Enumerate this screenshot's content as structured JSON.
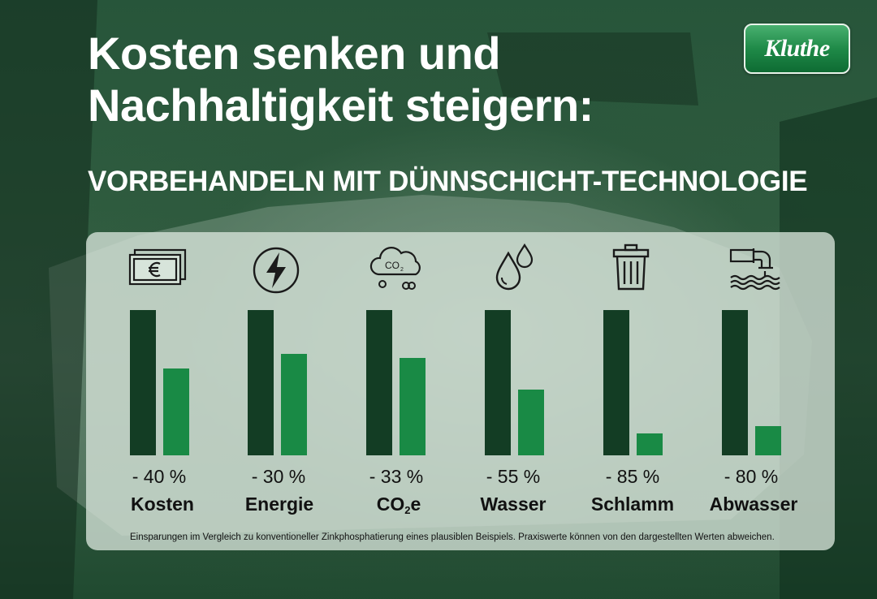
{
  "title_line1": "Kosten senken und",
  "title_line2": "Nachhaltigkeit steigern:",
  "subtitle": "VORBEHANDELN MIT DÜNNSCHICHT-TECHNOLOGIE",
  "logo_text": "Kluthe",
  "footnote": "Einsparungen im Vergleich zu konventioneller Zinkphosphatierung eines plausiblen Beispiels. Praxiswerte können von den dargestellten Werten abweichen.",
  "colors": {
    "conventional": "#133d24",
    "thin_layer": "#198a45",
    "brand": "#1f8a48"
  },
  "chart_data": {
    "type": "bar",
    "categories": [
      "Kosten",
      "Energie",
      "CO2e",
      "Wasser",
      "Schlamm",
      "Abwasser"
    ],
    "icons": [
      "money-icon",
      "energy-icon",
      "co2-cloud-icon",
      "water-drops-icon",
      "trash-can-icon",
      "wastewater-pipe-icon"
    ],
    "reduction_labels": [
      "- 40 %",
      "- 30 %",
      "- 33 %",
      "- 55 %",
      "- 85 %",
      "- 80 %"
    ],
    "series": [
      {
        "values": [
          100,
          100,
          100,
          100,
          100,
          100
        ]
      },
      {
        "values": [
          60,
          70,
          67,
          45,
          15,
          20
        ]
      }
    ],
    "ylim": [
      0,
      100
    ],
    "grid": false
  }
}
